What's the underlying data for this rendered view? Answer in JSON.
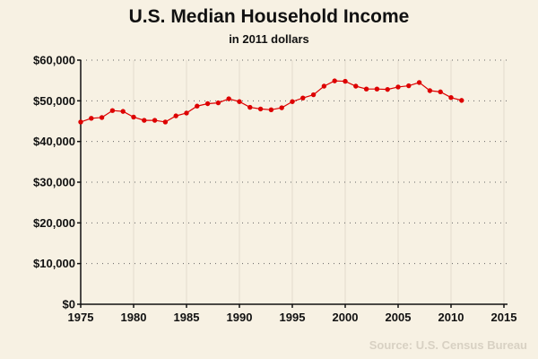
{
  "chart_data": {
    "type": "line",
    "title": "U.S. Median Household Income",
    "subtitle": "in 2011 dollars",
    "xlabel": "",
    "ylabel": "",
    "x": [
      1975,
      1976,
      1977,
      1978,
      1979,
      1980,
      1981,
      1982,
      1983,
      1984,
      1985,
      1986,
      1987,
      1988,
      1989,
      1990,
      1991,
      1992,
      1993,
      1994,
      1995,
      1996,
      1997,
      1998,
      1999,
      2000,
      2001,
      2002,
      2003,
      2004,
      2005,
      2006,
      2007,
      2008,
      2009,
      2010,
      2011
    ],
    "series": [
      {
        "name": "",
        "values": [
          44800,
          45700,
          45900,
          47600,
          47400,
          46000,
          45200,
          45200,
          44800,
          46300,
          47000,
          48700,
          49300,
          49500,
          50500,
          49800,
          48400,
          48000,
          47800,
          48300,
          49800,
          50700,
          51500,
          53600,
          54900,
          54800,
          53600,
          52900,
          52900,
          52800,
          53400,
          53700,
          54500,
          52500,
          52200,
          50800,
          50100
        ]
      }
    ],
    "xlim": [
      1975,
      2015
    ],
    "ylim": [
      0,
      60000
    ],
    "x_ticks": [
      {
        "value": 1975,
        "label": "1975"
      },
      {
        "value": 1980,
        "label": "1980"
      },
      {
        "value": 1985,
        "label": "1985"
      },
      {
        "value": 1990,
        "label": "1990"
      },
      {
        "value": 1995,
        "label": "1995"
      },
      {
        "value": 2000,
        "label": "2000"
      },
      {
        "value": 2005,
        "label": "2005"
      },
      {
        "value": 2010,
        "label": "2010"
      },
      {
        "value": 2015,
        "label": "2015"
      }
    ],
    "y_ticks": [
      {
        "value": 0,
        "label": "$0"
      },
      {
        "value": 10000,
        "label": "$10,000"
      },
      {
        "value": 20000,
        "label": "$20,000"
      },
      {
        "value": 30000,
        "label": "$30,000"
      },
      {
        "value": 40000,
        "label": "$40,000"
      },
      {
        "value": 50000,
        "label": "$50,000"
      },
      {
        "value": 60000,
        "label": "$60,000"
      }
    ],
    "grid": true,
    "source": "Source: U.S. Census Bureau",
    "colors": {
      "background": "#f7f1e3",
      "line": "#dd0000",
      "marker": "#dd0000",
      "grid_horizontal": "#666666",
      "grid_vertical": "#e3dccd",
      "axis": "#111111",
      "source_text": "#d8d1c3"
    }
  }
}
